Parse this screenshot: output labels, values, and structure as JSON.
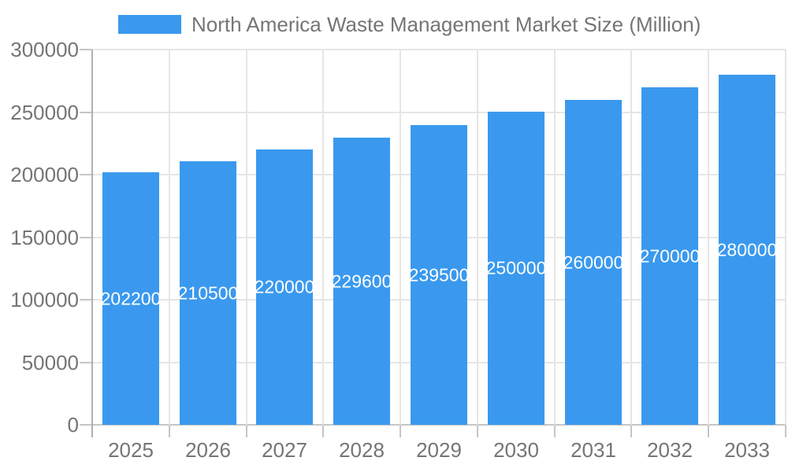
{
  "chart_data": {
    "type": "bar",
    "title": "North America Waste Management Market Size (Million)",
    "legend_position": "top",
    "legend_entries": [
      "North America Waste Management Market Size (Million)"
    ],
    "categories": [
      "2025",
      "2026",
      "2027",
      "2028",
      "2029",
      "2030",
      "2031",
      "2032",
      "2033"
    ],
    "series": [
      {
        "name": "North America Waste Management Market Size (Million)",
        "values": [
          202200,
          210500,
          220000,
          229600,
          239500,
          250000,
          260000,
          270000,
          280000
        ]
      }
    ],
    "bar_value_labels": [
      "202200",
      "210500",
      "220000",
      "229600",
      "239500",
      "250000",
      "260000",
      "270000",
      "280000"
    ],
    "xlabel": "",
    "ylabel": "",
    "ylim": [
      0,
      300000
    ],
    "yticks": [
      0,
      50000,
      100000,
      150000,
      200000,
      250000,
      300000
    ],
    "ytick_labels": [
      "0",
      "50000",
      "100000",
      "150000",
      "200000",
      "250000",
      "300000"
    ],
    "grid": true,
    "colors": {
      "bar": "#3A99EE",
      "bar_label_text": "#FFFFFF",
      "axis_text": "#757575",
      "gridline": "#E6E6E6",
      "axis_line": "#B0B0B0",
      "tick": "#C6C6C6",
      "background": "#FFFFFF"
    }
  }
}
